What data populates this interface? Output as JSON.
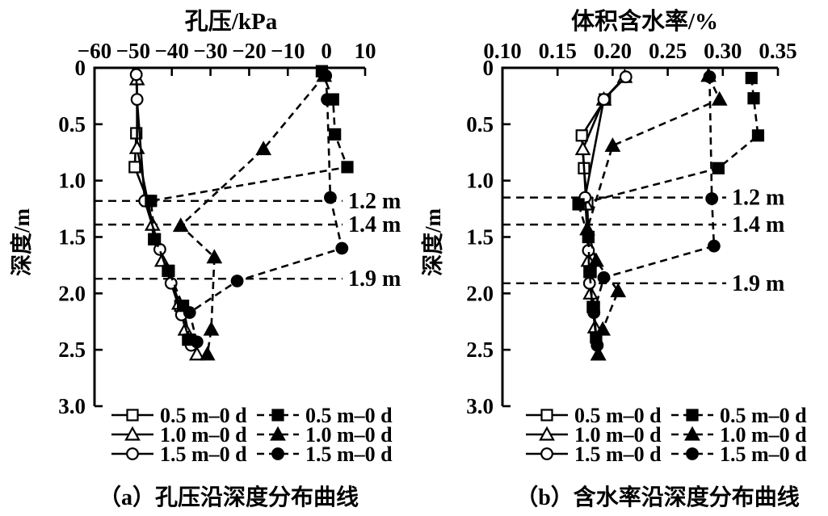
{
  "style": {
    "background": "#ffffff",
    "ink": "#000000"
  },
  "chart_data": [
    {
      "type": "line",
      "panel": "a",
      "title": "孔压/kPa",
      "y_axis_label": "深度/m",
      "caption": "（a）孔压沿深度分布曲线",
      "x_axis": {
        "position": "top",
        "min": -60,
        "max": 10,
        "tick_values": [
          -60,
          -50,
          -40,
          -30,
          -20,
          -10,
          0,
          10
        ],
        "tick_labels": [
          "−60",
          "−50",
          "−40",
          "−30",
          "−20",
          "−10",
          "0",
          "10"
        ]
      },
      "y_axis": {
        "inverted": true,
        "min": 0,
        "max": 3,
        "tick_values": [
          0,
          0.5,
          1,
          1.5,
          2,
          2.5,
          3
        ],
        "tick_labels": [
          "0",
          "0.5",
          "1.0",
          "1.5",
          "2.0",
          "2.5",
          "3.0"
        ]
      },
      "depth_annotations": [
        {
          "depth": 1.18,
          "label": "1.2 m"
        },
        {
          "depth": 1.39,
          "label": "1.4 m"
        },
        {
          "depth": 1.87,
          "label": "1.9 m"
        }
      ],
      "series": [
        {
          "name": "0.5 m–0 d",
          "line": "solid",
          "marker": "square",
          "fill": "open",
          "points": [
            [
              -49.2,
              0.58
            ],
            [
              -49.6,
              0.88
            ],
            [
              -46.2,
              1.18
            ],
            [
              -44.6,
              1.52
            ],
            [
              -41.0,
              1.8
            ],
            [
              -37.8,
              2.11
            ],
            [
              -35.8,
              2.41
            ]
          ]
        },
        {
          "name": "1.0 m–0 d",
          "line": "solid",
          "marker": "triangle",
          "fill": "open",
          "points": [
            [
              -49.0,
              0.1
            ],
            [
              -49.0,
              0.71
            ],
            [
              -45.0,
              1.39
            ],
            [
              -42.5,
              1.71
            ],
            [
              -38.1,
              2.09
            ],
            [
              -36.5,
              2.32
            ],
            [
              -33.5,
              2.54
            ]
          ]
        },
        {
          "name": "1.5 m–0 d",
          "line": "solid",
          "marker": "circle",
          "fill": "open",
          "points": [
            [
              -49.2,
              0.06
            ],
            [
              -49.0,
              0.28
            ],
            [
              -47.0,
              1.18
            ],
            [
              -43.1,
              1.61
            ],
            [
              -40.2,
              1.91
            ],
            [
              -37.5,
              2.19
            ],
            [
              -35.0,
              2.46
            ]
          ]
        },
        {
          "name": "0.5 m–0 d",
          "line": "dashed",
          "marker": "square",
          "fill": "filled",
          "points": [
            [
              -1.2,
              0.03
            ],
            [
              1.7,
              0.28
            ],
            [
              2.2,
              0.59
            ],
            [
              5.4,
              0.88
            ],
            [
              -45.4,
              1.18
            ],
            [
              -44.4,
              1.52
            ],
            [
              -40.8,
              1.8
            ],
            [
              -37.1,
              2.11
            ],
            [
              -35.4,
              2.41
            ]
          ]
        },
        {
          "name": "1.0 m–0 d",
          "line": "dashed",
          "marker": "triangle",
          "fill": "filled",
          "points": [
            [
              -0.6,
              0.07
            ],
            [
              -16.3,
              0.72
            ],
            [
              -37.7,
              1.4
            ],
            [
              -29.0,
              1.68
            ],
            [
              -29.8,
              2.32
            ],
            [
              -30.8,
              2.54
            ]
          ]
        },
        {
          "name": "1.5 m–0 d",
          "line": "dashed",
          "marker": "circle",
          "fill": "filled",
          "points": [
            [
              -0.2,
              0.07
            ],
            [
              0.2,
              0.28
            ],
            [
              1.0,
              1.15
            ],
            [
              4.0,
              1.6
            ],
            [
              -23.1,
              1.89
            ],
            [
              -35.4,
              2.17
            ],
            [
              -33.5,
              2.43
            ]
          ]
        }
      ],
      "legend": [
        {
          "label": "0.5 m–0 d",
          "line": "solid",
          "marker": "square",
          "fill": "open"
        },
        {
          "label": "1.0 m–0 d",
          "line": "solid",
          "marker": "triangle",
          "fill": "open"
        },
        {
          "label": "1.5 m–0 d",
          "line": "solid",
          "marker": "circle",
          "fill": "open"
        },
        {
          "label": "0.5 m–0 d",
          "line": "dashed",
          "marker": "square",
          "fill": "filled"
        },
        {
          "label": "1.0 m–0 d",
          "line": "dashed",
          "marker": "triangle",
          "fill": "filled"
        },
        {
          "label": "1.5 m–0 d",
          "line": "dashed",
          "marker": "circle",
          "fill": "filled"
        }
      ]
    },
    {
      "type": "line",
      "panel": "b",
      "title": "体积含水率/%",
      "y_axis_label": "深度/m",
      "caption": "（b）含水率沿深度分布曲线",
      "x_axis": {
        "position": "top",
        "min": 0.1,
        "max": 0.35,
        "tick_values": [
          0.1,
          0.15,
          0.2,
          0.25,
          0.3,
          0.35
        ],
        "tick_labels": [
          "0.10",
          "0.15",
          "0.20",
          "0.25",
          "0.30",
          "0.35"
        ]
      },
      "y_axis": {
        "inverted": true,
        "min": 0,
        "max": 3,
        "tick_values": [
          0,
          0.5,
          1,
          1.5,
          2,
          2.5,
          3
        ],
        "tick_labels": [
          "0",
          "0.5",
          "1.0",
          "1.5",
          "2.0",
          "2.5",
          "3.0"
        ]
      },
      "depth_annotations": [
        {
          "depth": 1.15,
          "label": "1.2 m"
        },
        {
          "depth": 1.39,
          "label": "1.4 m"
        },
        {
          "depth": 1.91,
          "label": "1.9 m"
        }
      ],
      "series": [
        {
          "name": "0.5 m–0 d",
          "line": "solid",
          "marker": "square",
          "fill": "open",
          "points": [
            [
              0.193,
              0.28
            ],
            [
              0.172,
              0.6
            ],
            [
              0.174,
              0.89
            ],
            [
              0.177,
              1.2
            ],
            [
              0.178,
              1.5
            ],
            [
              0.18,
              1.81
            ],
            [
              0.183,
              2.12
            ],
            [
              0.185,
              2.39
            ]
          ]
        },
        {
          "name": "1.0 m–0 d",
          "line": "solid",
          "marker": "triangle",
          "fill": "open",
          "points": [
            [
              0.211,
              0.08
            ],
            [
              0.192,
              0.28
            ],
            [
              0.173,
              0.72
            ],
            [
              0.176,
              1.21
            ],
            [
              0.178,
              1.71
            ],
            [
              0.18,
              2.0
            ],
            [
              0.184,
              2.3
            ],
            [
              0.187,
              2.54
            ]
          ]
        },
        {
          "name": "1.5 m–0 d",
          "line": "solid",
          "marker": "circle",
          "fill": "open",
          "points": [
            [
              0.212,
              0.08
            ],
            [
              0.192,
              0.28
            ],
            [
              0.175,
              1.15
            ],
            [
              0.178,
              1.62
            ],
            [
              0.179,
              1.91
            ],
            [
              0.183,
              2.17
            ],
            [
              0.186,
              2.46
            ]
          ]
        },
        {
          "name": "0.5 m–0 d",
          "line": "dashed",
          "marker": "square",
          "fill": "filled",
          "points": [
            [
              0.326,
              0.09
            ],
            [
              0.328,
              0.27
            ],
            [
              0.332,
              0.6
            ],
            [
              0.296,
              0.89
            ],
            [
              0.169,
              1.21
            ],
            [
              0.178,
              1.5
            ],
            [
              0.179,
              1.81
            ],
            [
              0.182,
              2.12
            ],
            [
              0.185,
              2.39
            ]
          ]
        },
        {
          "name": "1.0 m–0 d",
          "line": "dashed",
          "marker": "triangle",
          "fill": "filled",
          "points": [
            [
              0.287,
              0.07
            ],
            [
              0.297,
              0.28
            ],
            [
              0.2,
              0.69
            ],
            [
              0.177,
              1.43
            ],
            [
              0.185,
              1.71
            ],
            [
              0.205,
              1.98
            ],
            [
              0.191,
              2.32
            ],
            [
              0.187,
              2.54
            ]
          ]
        },
        {
          "name": "1.5 m–0 d",
          "line": "dashed",
          "marker": "circle",
          "fill": "filled",
          "points": [
            [
              0.288,
              0.08
            ],
            [
              0.29,
              1.16
            ],
            [
              0.292,
              1.58
            ],
            [
              0.192,
              1.86
            ],
            [
              0.183,
              2.17
            ],
            [
              0.186,
              2.46
            ]
          ]
        }
      ],
      "legend": [
        {
          "label": "0.5 m–0 d",
          "line": "solid",
          "marker": "square",
          "fill": "open"
        },
        {
          "label": "1.0 m–0 d",
          "line": "solid",
          "marker": "triangle",
          "fill": "open"
        },
        {
          "label": "1.5 m–0 d",
          "line": "solid",
          "marker": "circle",
          "fill": "open"
        },
        {
          "label": "0.5 m–0 d",
          "line": "dashed",
          "marker": "square",
          "fill": "filled"
        },
        {
          "label": "1.0 m–0 d",
          "line": "dashed",
          "marker": "triangle",
          "fill": "filled"
        },
        {
          "label": "1.5 m–0 d",
          "line": "dashed",
          "marker": "circle",
          "fill": "filled"
        }
      ]
    }
  ]
}
